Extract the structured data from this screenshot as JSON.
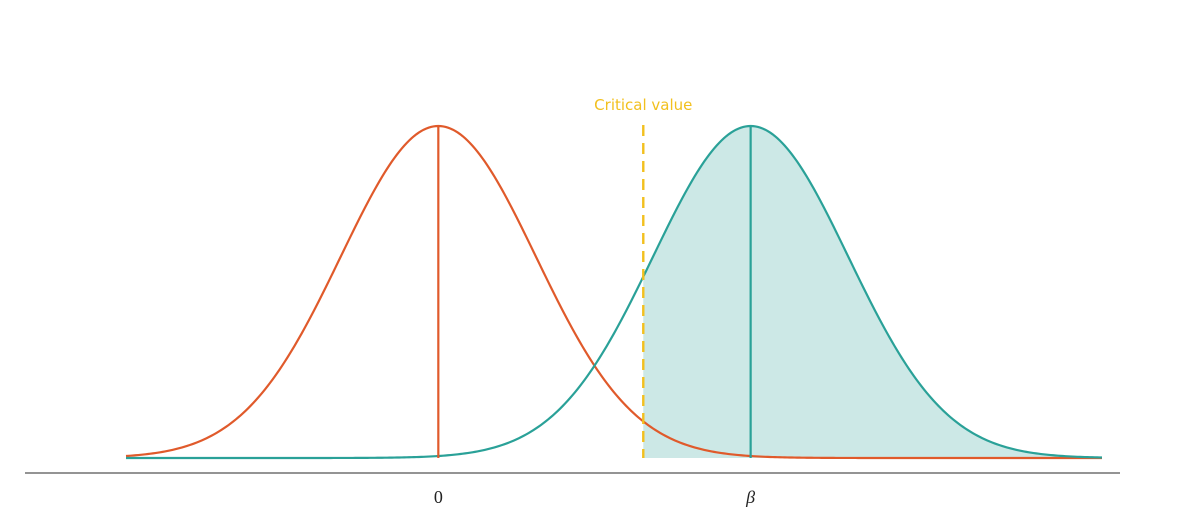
{
  "chart_data": {
    "type": "line",
    "title": "",
    "xlabel": "",
    "ylabel": "",
    "xlim": [
      -3.2,
      6.8
    ],
    "ylim": [
      0,
      1
    ],
    "grid": false,
    "series": [
      {
        "mean": 0,
        "sd": 1,
        "color": "#e05a2b"
      },
      {
        "mean": 3.2,
        "sd": 1,
        "color": "#2aa198",
        "fill": "#cce8e6"
      }
    ],
    "shaded_region": {
      "x_from": 2.1,
      "x_to": 6.8
    },
    "tick_labels": [
      {
        "x": 0,
        "label": "0",
        "italic": false
      },
      {
        "x": 3.2,
        "label": "β",
        "italic": true
      }
    ],
    "annotation": {
      "x": 2.1,
      "text": "Critical value",
      "color": "#f2c01e"
    },
    "axis_color": "#555555"
  }
}
